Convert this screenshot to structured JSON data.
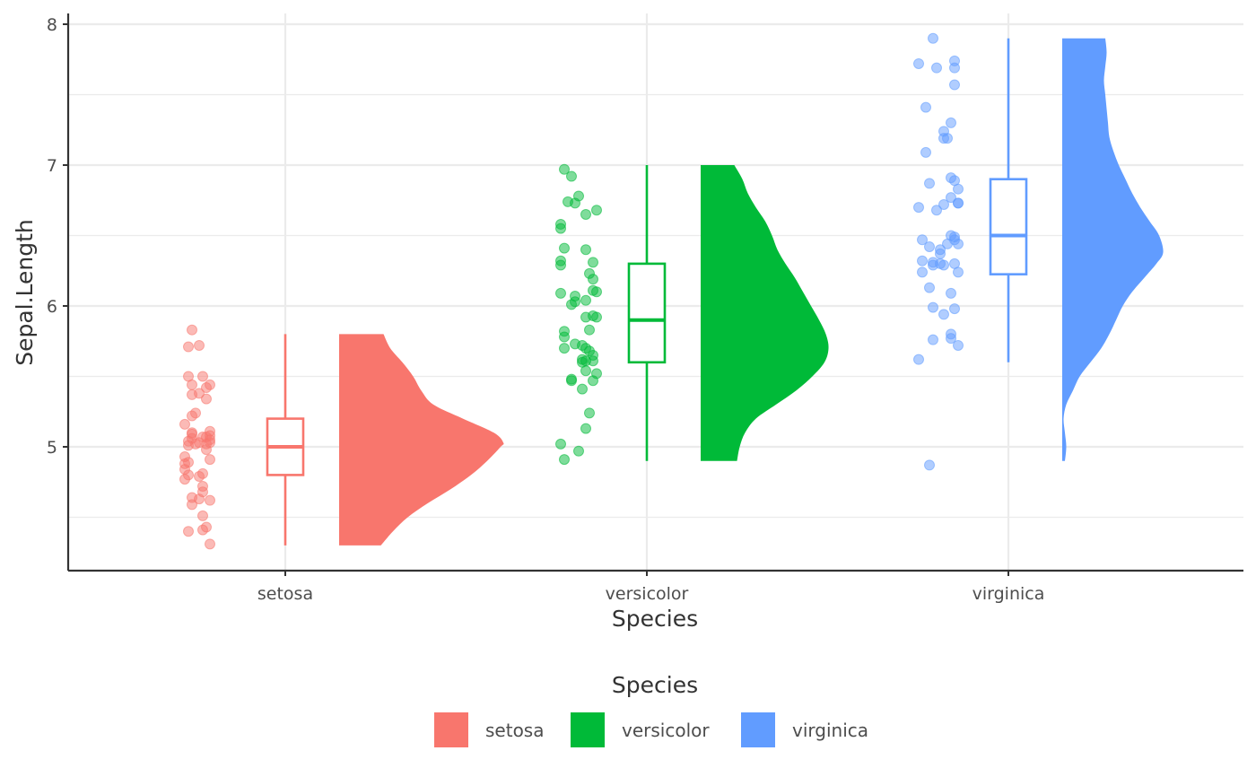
{
  "chart_data": {
    "type": "raincloud",
    "xlabel": "Species",
    "ylabel": "Sepal.Length",
    "categories": [
      "setosa",
      "versicolor",
      "virginica"
    ],
    "colors": {
      "setosa": "#F8766D",
      "versicolor": "#00BA38",
      "virginica": "#619CFF"
    },
    "ylim": [
      4.1,
      8.1
    ],
    "yticks": [
      5,
      6,
      7,
      8
    ],
    "ytick_labels": [
      "5",
      "6",
      "7",
      "8"
    ],
    "grid": true,
    "legend": {
      "title": "Species",
      "position": "bottom",
      "items": [
        "setosa",
        "versicolor",
        "virginica"
      ]
    },
    "series": [
      {
        "name": "setosa",
        "points": [
          {
            "x": -0.26,
            "y": 5.83
          },
          {
            "x": -0.24,
            "y": 5.72
          },
          {
            "x": -0.27,
            "y": 5.71
          },
          {
            "x": -0.23,
            "y": 5.5
          },
          {
            "x": -0.27,
            "y": 5.5
          },
          {
            "x": -0.26,
            "y": 5.44
          },
          {
            "x": -0.21,
            "y": 5.44
          },
          {
            "x": -0.22,
            "y": 5.42
          },
          {
            "x": -0.24,
            "y": 5.38
          },
          {
            "x": -0.26,
            "y": 5.37
          },
          {
            "x": -0.22,
            "y": 5.34
          },
          {
            "x": -0.25,
            "y": 5.24
          },
          {
            "x": -0.26,
            "y": 5.22
          },
          {
            "x": -0.28,
            "y": 5.16
          },
          {
            "x": -0.21,
            "y": 5.11
          },
          {
            "x": -0.26,
            "y": 5.1
          },
          {
            "x": -0.26,
            "y": 5.09
          },
          {
            "x": -0.21,
            "y": 5.08
          },
          {
            "x": -0.22,
            "y": 5.07
          },
          {
            "x": -0.23,
            "y": 5.07
          },
          {
            "x": -0.26,
            "y": 5.06
          },
          {
            "x": -0.21,
            "y": 5.05
          },
          {
            "x": -0.27,
            "y": 5.04
          },
          {
            "x": -0.21,
            "y": 5.03
          },
          {
            "x": -0.24,
            "y": 5.03
          },
          {
            "x": -0.25,
            "y": 5.02
          },
          {
            "x": -0.22,
            "y": 5.02
          },
          {
            "x": -0.27,
            "y": 5.01
          },
          {
            "x": -0.22,
            "y": 4.98
          },
          {
            "x": -0.28,
            "y": 4.93
          },
          {
            "x": -0.21,
            "y": 4.91
          },
          {
            "x": -0.27,
            "y": 4.89
          },
          {
            "x": -0.28,
            "y": 4.88
          },
          {
            "x": -0.28,
            "y": 4.84
          },
          {
            "x": -0.23,
            "y": 4.81
          },
          {
            "x": -0.27,
            "y": 4.8
          },
          {
            "x": -0.24,
            "y": 4.79
          },
          {
            "x": -0.28,
            "y": 4.77
          },
          {
            "x": -0.23,
            "y": 4.72
          },
          {
            "x": -0.23,
            "y": 4.68
          },
          {
            "x": -0.26,
            "y": 4.64
          },
          {
            "x": -0.24,
            "y": 4.63
          },
          {
            "x": -0.21,
            "y": 4.62
          },
          {
            "x": -0.26,
            "y": 4.59
          },
          {
            "x": -0.23,
            "y": 4.51
          },
          {
            "x": -0.22,
            "y": 4.43
          },
          {
            "x": -0.23,
            "y": 4.41
          },
          {
            "x": -0.27,
            "y": 4.4
          },
          {
            "x": -0.21,
            "y": 4.31
          }
        ],
        "box": {
          "q1": 4.8,
          "median": 5.0,
          "q3": 5.2,
          "whisker_low": 4.3,
          "whisker_high": 5.8
        },
        "density": {
          "y": [
            4.3,
            4.4,
            4.5,
            4.6,
            4.7,
            4.8,
            4.9,
            5.0,
            5.03,
            5.1,
            5.2,
            5.3,
            5.4,
            5.5,
            5.6,
            5.7,
            5.8
          ],
          "width": [
            0.31,
            0.4,
            0.51,
            0.66,
            0.83,
            0.98,
            1.1,
            1.2,
            1.22,
            1.15,
            0.92,
            0.7,
            0.61,
            0.55,
            0.47,
            0.38,
            0.33
          ]
        }
      },
      {
        "name": "versicolor",
        "points": [
          {
            "x": -0.23,
            "y": 6.97
          },
          {
            "x": -0.21,
            "y": 6.92
          },
          {
            "x": -0.19,
            "y": 6.78
          },
          {
            "x": -0.22,
            "y": 6.74
          },
          {
            "x": -0.2,
            "y": 6.73
          },
          {
            "x": -0.14,
            "y": 6.68
          },
          {
            "x": -0.17,
            "y": 6.65
          },
          {
            "x": -0.24,
            "y": 6.58
          },
          {
            "x": -0.24,
            "y": 6.55
          },
          {
            "x": -0.23,
            "y": 6.41
          },
          {
            "x": -0.17,
            "y": 6.4
          },
          {
            "x": -0.24,
            "y": 6.32
          },
          {
            "x": -0.15,
            "y": 6.31
          },
          {
            "x": -0.24,
            "y": 6.29
          },
          {
            "x": -0.16,
            "y": 6.23
          },
          {
            "x": -0.15,
            "y": 6.19
          },
          {
            "x": -0.15,
            "y": 6.11
          },
          {
            "x": -0.14,
            "y": 6.1
          },
          {
            "x": -0.24,
            "y": 6.09
          },
          {
            "x": -0.2,
            "y": 6.07
          },
          {
            "x": -0.17,
            "y": 6.04
          },
          {
            "x": -0.2,
            "y": 6.03
          },
          {
            "x": -0.21,
            "y": 6.01
          },
          {
            "x": -0.15,
            "y": 5.93
          },
          {
            "x": -0.17,
            "y": 5.92
          },
          {
            "x": -0.14,
            "y": 5.92
          },
          {
            "x": -0.16,
            "y": 5.83
          },
          {
            "x": -0.23,
            "y": 5.82
          },
          {
            "x": -0.23,
            "y": 5.78
          },
          {
            "x": -0.2,
            "y": 5.73
          },
          {
            "x": -0.18,
            "y": 5.72
          },
          {
            "x": -0.23,
            "y": 5.7
          },
          {
            "x": -0.17,
            "y": 5.7
          },
          {
            "x": -0.16,
            "y": 5.68
          },
          {
            "x": -0.15,
            "y": 5.65
          },
          {
            "x": -0.18,
            "y": 5.62
          },
          {
            "x": -0.15,
            "y": 5.61
          },
          {
            "x": -0.17,
            "y": 5.61
          },
          {
            "x": -0.18,
            "y": 5.6
          },
          {
            "x": -0.17,
            "y": 5.54
          },
          {
            "x": -0.14,
            "y": 5.52
          },
          {
            "x": -0.21,
            "y": 5.48
          },
          {
            "x": -0.21,
            "y": 5.47
          },
          {
            "x": -0.15,
            "y": 5.47
          },
          {
            "x": -0.18,
            "y": 5.41
          },
          {
            "x": -0.16,
            "y": 5.24
          },
          {
            "x": -0.17,
            "y": 5.13
          },
          {
            "x": -0.24,
            "y": 5.02
          },
          {
            "x": -0.19,
            "y": 4.97
          },
          {
            "x": -0.23,
            "y": 4.91
          }
        ],
        "box": {
          "q1": 5.6,
          "median": 5.9,
          "q3": 6.3,
          "whisker_low": 4.9,
          "whisker_high": 7.0
        },
        "density": {
          "y": [
            4.9,
            5.0,
            5.1,
            5.2,
            5.3,
            5.4,
            5.5,
            5.6,
            5.7,
            5.8,
            5.9,
            6.0,
            6.1,
            6.2,
            6.3,
            6.4,
            6.5,
            6.6,
            6.7,
            6.8,
            6.9,
            7.0
          ],
          "width": [
            0.27,
            0.29,
            0.33,
            0.41,
            0.56,
            0.71,
            0.83,
            0.92,
            0.95,
            0.93,
            0.88,
            0.82,
            0.76,
            0.7,
            0.63,
            0.57,
            0.53,
            0.48,
            0.41,
            0.35,
            0.31,
            0.25
          ]
        }
      },
      {
        "name": "virginica",
        "points": [
          {
            "x": -0.21,
            "y": 7.9
          },
          {
            "x": -0.15,
            "y": 7.74
          },
          {
            "x": -0.25,
            "y": 7.72
          },
          {
            "x": -0.2,
            "y": 7.69
          },
          {
            "x": -0.15,
            "y": 7.69
          },
          {
            "x": -0.15,
            "y": 7.57
          },
          {
            "x": -0.23,
            "y": 7.41
          },
          {
            "x": -0.16,
            "y": 7.3
          },
          {
            "x": -0.18,
            "y": 7.24
          },
          {
            "x": -0.18,
            "y": 7.19
          },
          {
            "x": -0.17,
            "y": 7.19
          },
          {
            "x": -0.23,
            "y": 7.09
          },
          {
            "x": -0.16,
            "y": 6.91
          },
          {
            "x": -0.15,
            "y": 6.89
          },
          {
            "x": -0.22,
            "y": 6.87
          },
          {
            "x": -0.14,
            "y": 6.83
          },
          {
            "x": -0.16,
            "y": 6.77
          },
          {
            "x": -0.14,
            "y": 6.73
          },
          {
            "x": -0.14,
            "y": 6.73
          },
          {
            "x": -0.18,
            "y": 6.72
          },
          {
            "x": -0.25,
            "y": 6.7
          },
          {
            "x": -0.2,
            "y": 6.68
          },
          {
            "x": -0.16,
            "y": 6.5
          },
          {
            "x": -0.15,
            "y": 6.49
          },
          {
            "x": -0.15,
            "y": 6.47
          },
          {
            "x": -0.24,
            "y": 6.47
          },
          {
            "x": -0.17,
            "y": 6.44
          },
          {
            "x": -0.14,
            "y": 6.44
          },
          {
            "x": -0.22,
            "y": 6.42
          },
          {
            "x": -0.19,
            "y": 6.4
          },
          {
            "x": -0.19,
            "y": 6.37
          },
          {
            "x": -0.24,
            "y": 6.32
          },
          {
            "x": -0.21,
            "y": 6.31
          },
          {
            "x": -0.19,
            "y": 6.3
          },
          {
            "x": -0.15,
            "y": 6.3
          },
          {
            "x": -0.21,
            "y": 6.29
          },
          {
            "x": -0.18,
            "y": 6.29
          },
          {
            "x": -0.24,
            "y": 6.24
          },
          {
            "x": -0.14,
            "y": 6.24
          },
          {
            "x": -0.22,
            "y": 6.13
          },
          {
            "x": -0.16,
            "y": 6.09
          },
          {
            "x": -0.21,
            "y": 5.99
          },
          {
            "x": -0.15,
            "y": 5.98
          },
          {
            "x": -0.18,
            "y": 5.94
          },
          {
            "x": -0.16,
            "y": 5.8
          },
          {
            "x": -0.16,
            "y": 5.77
          },
          {
            "x": -0.21,
            "y": 5.76
          },
          {
            "x": -0.14,
            "y": 5.72
          },
          {
            "x": -0.25,
            "y": 5.62
          },
          {
            "x": -0.22,
            "y": 4.87
          }
        ],
        "box": {
          "q1": 6.225,
          "median": 6.5,
          "q3": 6.9,
          "whisker_low": 5.6,
          "whisker_high": 7.9
        },
        "density": {
          "y": [
            4.9,
            5.0,
            5.1,
            5.2,
            5.3,
            5.4,
            5.5,
            5.6,
            5.7,
            5.8,
            5.9,
            6.0,
            6.1,
            6.2,
            6.3,
            6.38,
            6.5,
            6.6,
            6.7,
            6.8,
            6.9,
            7.0,
            7.1,
            7.2,
            7.3,
            7.4,
            7.5,
            7.6,
            7.7,
            7.8,
            7.9
          ],
          "width": [
            0.02,
            0.03,
            0.02,
            0.01,
            0.03,
            0.08,
            0.13,
            0.21,
            0.29,
            0.35,
            0.4,
            0.45,
            0.52,
            0.61,
            0.7,
            0.75,
            0.72,
            0.65,
            0.58,
            0.52,
            0.47,
            0.42,
            0.38,
            0.35,
            0.34,
            0.33,
            0.32,
            0.31,
            0.32,
            0.33,
            0.32
          ]
        }
      }
    ]
  }
}
